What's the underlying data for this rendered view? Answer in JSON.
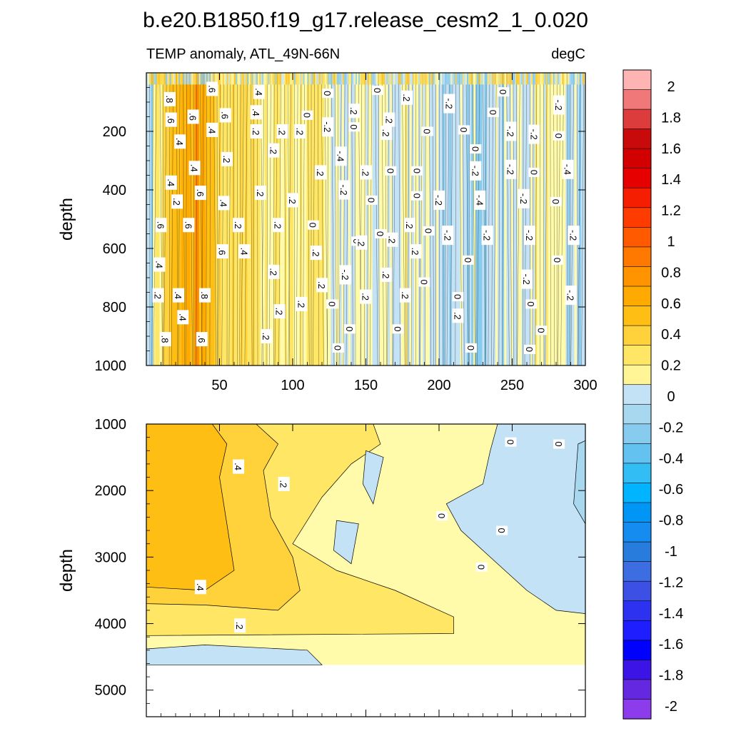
{
  "chart_data": [
    {
      "type": "heatmap",
      "title": "b.e20.B1850.f19_g17.release_cesm2_1_0.020",
      "subtitle_left": "TEMP anomaly, ATL_49N-66N",
      "subtitle_right": "degC",
      "ylabel": "depth",
      "xlim": [
        0,
        300
      ],
      "ylim": [
        1000,
        0
      ],
      "x_ticks": [
        50,
        100,
        150,
        200,
        250,
        300
      ],
      "y_ticks": [
        200,
        400,
        600,
        800,
        1000
      ],
      "contour_labels": [
        {
          "text": ".8",
          "x": 16,
          "y": 90
        },
        {
          "text": ".6",
          "x": 45,
          "y": 55
        },
        {
          "text": ".4",
          "x": 77,
          "y": 65
        },
        {
          "text": "0",
          "x": 124,
          "y": 70
        },
        {
          "text": "0",
          "x": 158,
          "y": 60
        },
        {
          "text": ".2",
          "x": 178,
          "y": 85
        },
        {
          "text": "-.2",
          "x": 207,
          "y": 105
        },
        {
          "text": "0",
          "x": 244,
          "y": 65
        },
        {
          "text": "0",
          "x": 237,
          "y": 135
        },
        {
          "text": "-.2",
          "x": 282,
          "y": 110
        },
        {
          "text": ".6",
          "x": 17,
          "y": 160
        },
        {
          "text": ".6",
          "x": 32,
          "y": 150
        },
        {
          "text": ".6",
          "x": 54,
          "y": 145
        },
        {
          "text": ".4",
          "x": 75,
          "y": 135
        },
        {
          "text": "0",
          "x": 110,
          "y": 145
        },
        {
          "text": ".2",
          "x": 142,
          "y": 130
        },
        {
          "text": ".2",
          "x": 166,
          "y": 160
        },
        {
          "text": ".4",
          "x": 45,
          "y": 195
        },
        {
          "text": ".4",
          "x": 23,
          "y": 235
        },
        {
          "text": ".2",
          "x": 75,
          "y": 200
        },
        {
          "text": ".2",
          "x": 93,
          "y": 200
        },
        {
          "text": ".2",
          "x": 105,
          "y": 200
        },
        {
          "text": "-.2",
          "x": 124,
          "y": 185
        },
        {
          "text": "0",
          "x": 142,
          "y": 185
        },
        {
          "text": ".2",
          "x": 164,
          "y": 205
        },
        {
          "text": "0",
          "x": 192,
          "y": 200
        },
        {
          "text": "0",
          "x": 217,
          "y": 195
        },
        {
          "text": "-.2",
          "x": 249,
          "y": 200
        },
        {
          "text": "-.2",
          "x": 265,
          "y": 210
        },
        {
          "text": "0",
          "x": 282,
          "y": 215
        },
        {
          "text": "0",
          "x": 225,
          "y": 260
        },
        {
          "text": "-.4",
          "x": 133,
          "y": 285
        },
        {
          "text": ".2",
          "x": 87,
          "y": 265
        },
        {
          "text": ".2",
          "x": 55,
          "y": 295
        },
        {
          "text": ".4",
          "x": 33,
          "y": 325
        },
        {
          "text": ".4",
          "x": 17,
          "y": 375
        },
        {
          "text": ".2",
          "x": 119,
          "y": 340
        },
        {
          "text": ".2",
          "x": 150,
          "y": 340
        },
        {
          "text": "0",
          "x": 167,
          "y": 335
        },
        {
          "text": "0",
          "x": 185,
          "y": 335
        },
        {
          "text": "-.2",
          "x": 225,
          "y": 335
        },
        {
          "text": "-.2",
          "x": 249,
          "y": 330
        },
        {
          "text": "0",
          "x": 265,
          "y": 340
        },
        {
          "text": "-.4",
          "x": 288,
          "y": 330
        },
        {
          "text": ".6",
          "x": 37,
          "y": 410
        },
        {
          "text": ".2",
          "x": 21,
          "y": 440
        },
        {
          "text": ".2",
          "x": 78,
          "y": 410
        },
        {
          "text": ".2",
          "x": 100,
          "y": 435
        },
        {
          "text": "-.2",
          "x": 135,
          "y": 400
        },
        {
          "text": "0",
          "x": 154,
          "y": 435
        },
        {
          "text": "0",
          "x": 185,
          "y": 420
        },
        {
          "text": "-.2",
          "x": 200,
          "y": 435
        },
        {
          "text": "-.4",
          "x": 228,
          "y": 435
        },
        {
          "text": "-.2",
          "x": 258,
          "y": 430
        },
        {
          "text": "0",
          "x": 280,
          "y": 440
        },
        {
          "text": ".4",
          "x": 53,
          "y": 445
        },
        {
          "text": ".2",
          "x": 63,
          "y": 520
        },
        {
          "text": ".6",
          "x": 10,
          "y": 520
        },
        {
          "text": ".6",
          "x": 29,
          "y": 520
        },
        {
          "text": "0",
          "x": 114,
          "y": 520
        },
        {
          "text": ".2",
          "x": 90,
          "y": 520
        },
        {
          "text": "0",
          "x": 160,
          "y": 550
        },
        {
          "text": ".2",
          "x": 180,
          "y": 520
        },
        {
          "text": "0",
          "x": 193,
          "y": 540
        },
        {
          "text": "-.2",
          "x": 206,
          "y": 555
        },
        {
          "text": "-.2",
          "x": 233,
          "y": 555
        },
        {
          "text": "-.2",
          "x": 262,
          "y": 555
        },
        {
          "text": "-.2",
          "x": 292,
          "y": 555
        },
        {
          "text": ".2",
          "x": 168,
          "y": 570
        },
        {
          "text": "0",
          "x": 144,
          "y": 575
        },
        {
          "text": ".6",
          "x": 52,
          "y": 610
        },
        {
          "text": ".4",
          "x": 67,
          "y": 610
        },
        {
          "text": ".2",
          "x": 116,
          "y": 615
        },
        {
          "text": ".4",
          "x": 9,
          "y": 655
        },
        {
          "text": ".2",
          "x": 147,
          "y": 580
        },
        {
          "text": ".2",
          "x": 184,
          "y": 610
        },
        {
          "text": "0",
          "x": 220,
          "y": 640
        },
        {
          "text": "0",
          "x": 281,
          "y": 640
        },
        {
          "text": ".2",
          "x": 87,
          "y": 680
        },
        {
          "text": ".2",
          "x": 120,
          "y": 725
        },
        {
          "text": "-.2",
          "x": 136,
          "y": 690
        },
        {
          "text": ".2",
          "x": 164,
          "y": 690
        },
        {
          "text": "0",
          "x": 190,
          "y": 715
        },
        {
          "text": "-.2",
          "x": 260,
          "y": 705
        },
        {
          "text": ".2",
          "x": 8,
          "y": 760
        },
        {
          "text": ".4",
          "x": 22,
          "y": 760
        },
        {
          "text": ".8",
          "x": 40,
          "y": 760
        },
        {
          "text": ".2",
          "x": 106,
          "y": 790
        },
        {
          "text": "0",
          "x": 127,
          "y": 790
        },
        {
          "text": ".2",
          "x": 150,
          "y": 765
        },
        {
          "text": ".2",
          "x": 177,
          "y": 760
        },
        {
          "text": "0",
          "x": 213,
          "y": 765
        },
        {
          "text": "0",
          "x": 263,
          "y": 790
        },
        {
          "text": "-.2",
          "x": 290,
          "y": 760
        },
        {
          "text": ".4",
          "x": 25,
          "y": 835
        },
        {
          "text": ".2",
          "x": 91,
          "y": 815
        },
        {
          "text": ".2",
          "x": 213,
          "y": 830
        },
        {
          "text": "0",
          "x": 139,
          "y": 875
        },
        {
          "text": "0",
          "x": 172,
          "y": 875
        },
        {
          "text": "0",
          "x": 270,
          "y": 880
        },
        {
          "text": ".8",
          "x": 13,
          "y": 910
        },
        {
          "text": ".6",
          "x": 38,
          "y": 910
        },
        {
          "text": ".2",
          "x": 82,
          "y": 900
        },
        {
          "text": "0",
          "x": 131,
          "y": 940
        },
        {
          "text": "0",
          "x": 222,
          "y": 940
        },
        {
          "text": "0",
          "x": 262,
          "y": 945
        }
      ]
    },
    {
      "type": "heatmap",
      "ylabel": "depth",
      "xlim": [
        0,
        300
      ],
      "ylim": [
        5400,
        1000
      ],
      "y_ticks": [
        1000,
        2000,
        3000,
        4000,
        5000
      ],
      "contour_labels": [
        {
          "text": ".4",
          "x": 63,
          "y": 1640
        },
        {
          "text": ".2",
          "x": 94,
          "y": 1900
        },
        {
          "text": "0",
          "x": 249,
          "y": 1270
        },
        {
          "text": "0",
          "x": 282,
          "y": 1300
        },
        {
          "text": "0",
          "x": 202,
          "y": 2380
        },
        {
          "text": "0",
          "x": 243,
          "y": 2600
        },
        {
          "text": "0",
          "x": 229,
          "y": 3150
        },
        {
          "text": ".4",
          "x": 37,
          "y": 3450
        },
        {
          "text": ".2",
          "x": 64,
          "y": 4030
        }
      ]
    }
  ],
  "colorbar": {
    "labels": [
      "2",
      "1.8",
      "1.6",
      "1.4",
      "1.2",
      "1",
      "0.8",
      "0.6",
      "0.4",
      "0.2",
      "0",
      "-0.2",
      "-0.4",
      "-0.6",
      "-0.8",
      "-1",
      "-1.2",
      "-1.4",
      "-1.6",
      "-1.8",
      "-2"
    ],
    "colors": [
      "#ffb4b4",
      "#f07878",
      "#dc3c3c",
      "#c80a0a",
      "#d20000",
      "#e60000",
      "#f51e00",
      "#ff3c00",
      "#ff5a00",
      "#ff7800",
      "#ff9400",
      "#ffaa00",
      "#ffbe14",
      "#ffd23c",
      "#ffe664",
      "#fff596",
      "#c4e2f5",
      "#a8d8f0",
      "#87ccee",
      "#64c2f0",
      "#32bef5",
      "#00b4ff",
      "#0096f5",
      "#148cf0",
      "#287ddc",
      "#3c6ee1",
      "#3c50e6",
      "#2d32f0",
      "#1e1eff",
      "#0000ff",
      "#3c14e6",
      "#6428e1",
      "#8c3ceb"
    ]
  }
}
